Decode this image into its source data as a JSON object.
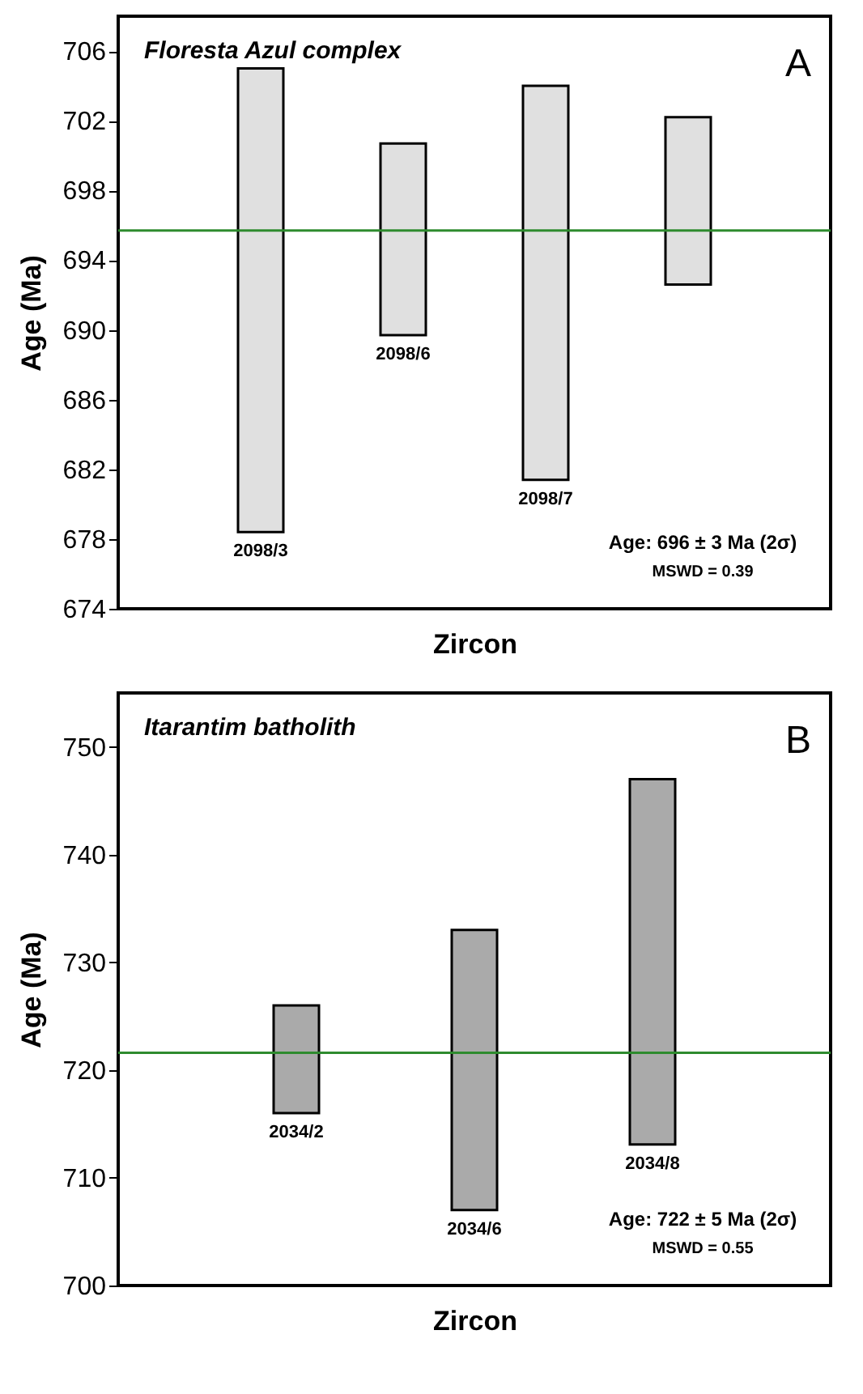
{
  "chart_data": [
    {
      "type": "bar",
      "title": "Floresta Azul complex",
      "xlabel": "Zircon",
      "ylabel": "Age (Ma)",
      "categories": [
        "2098/3",
        "2098/6",
        "2098/7",
        null
      ],
      "series": [
        {
          "color": "#e0e0e0",
          "base": [
            678.4,
            689.7,
            681.4,
            692.6
          ],
          "values": [
            26.6,
            11.0,
            22.6,
            9.6
          ]
        }
      ],
      "ylim": [
        674,
        708
      ],
      "yticks": [
        674,
        678,
        682,
        686,
        690,
        694,
        698,
        702,
        706
      ],
      "ref_lines": [
        {
          "axis": "y",
          "value": 695.7,
          "color": "#2e8b2e"
        }
      ],
      "annotations": [
        "A",
        "Age: 696 ± 3 Ma (2σ)",
        "MSWD = 0.39"
      ],
      "tick_labels": "y",
      "grid": false
    },
    {
      "type": "bar",
      "title": "Itarantim batholith",
      "xlabel": "Zircon",
      "ylabel": "Age (Ma)",
      "categories": [
        "2034/2",
        "2034/6",
        "2034/8"
      ],
      "series": [
        {
          "color": "#aaaaaa",
          "base": [
            716.0,
            707.0,
            713.1
          ],
          "values": [
            10.0,
            26.0,
            33.9
          ]
        }
      ],
      "ylim": [
        700,
        755
      ],
      "yticks": [
        700,
        710,
        720,
        730,
        740,
        750
      ],
      "ref_lines": [
        {
          "axis": "y",
          "value": 721.6,
          "color": "#2e8b2e"
        }
      ],
      "annotations": [
        "B",
        "Age: 722 ± 5 Ma (2σ)",
        "MSWD = 0.55"
      ],
      "tick_labels": "y",
      "grid": false
    }
  ]
}
